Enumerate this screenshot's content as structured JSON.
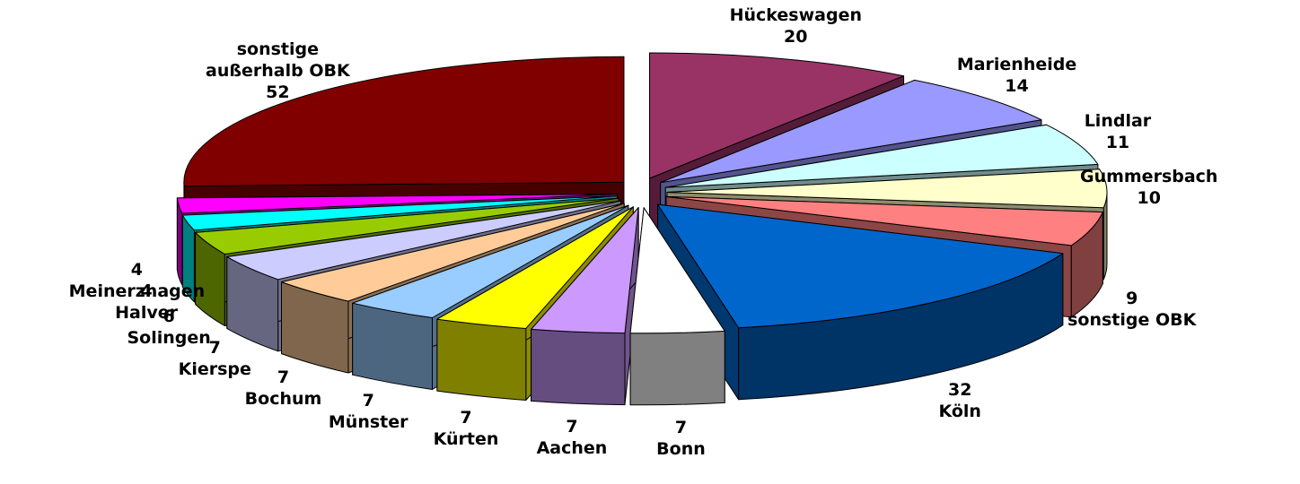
{
  "chart_data": {
    "type": "pie",
    "categories": [
      "Hückeswagen",
      "Marienheide",
      "Lindlar",
      "Gummersbach",
      "sonstige OBK",
      "Köln",
      "Bonn",
      "Aachen",
      "Kürten",
      "Münster",
      "Bochum",
      "Kierspe",
      "Solingen",
      "Halver",
      "Meinerzhagen",
      "sonstige außerhalb OBK"
    ],
    "values": [
      20,
      14,
      11,
      10,
      9,
      32,
      7,
      7,
      7,
      7,
      7,
      7,
      6,
      4,
      4,
      52
    ],
    "colors": [
      "#993366",
      "#9999ff",
      "#ccffff",
      "#ffffcc",
      "#ff8080",
      "#0066cc",
      "#ffffff",
      "#cc99ff",
      "#ffff00",
      "#99ccff",
      "#ffcc99",
      "#ccccff",
      "#99cc00",
      "#00ffff",
      "#ff00ff",
      "#800000"
    ]
  }
}
